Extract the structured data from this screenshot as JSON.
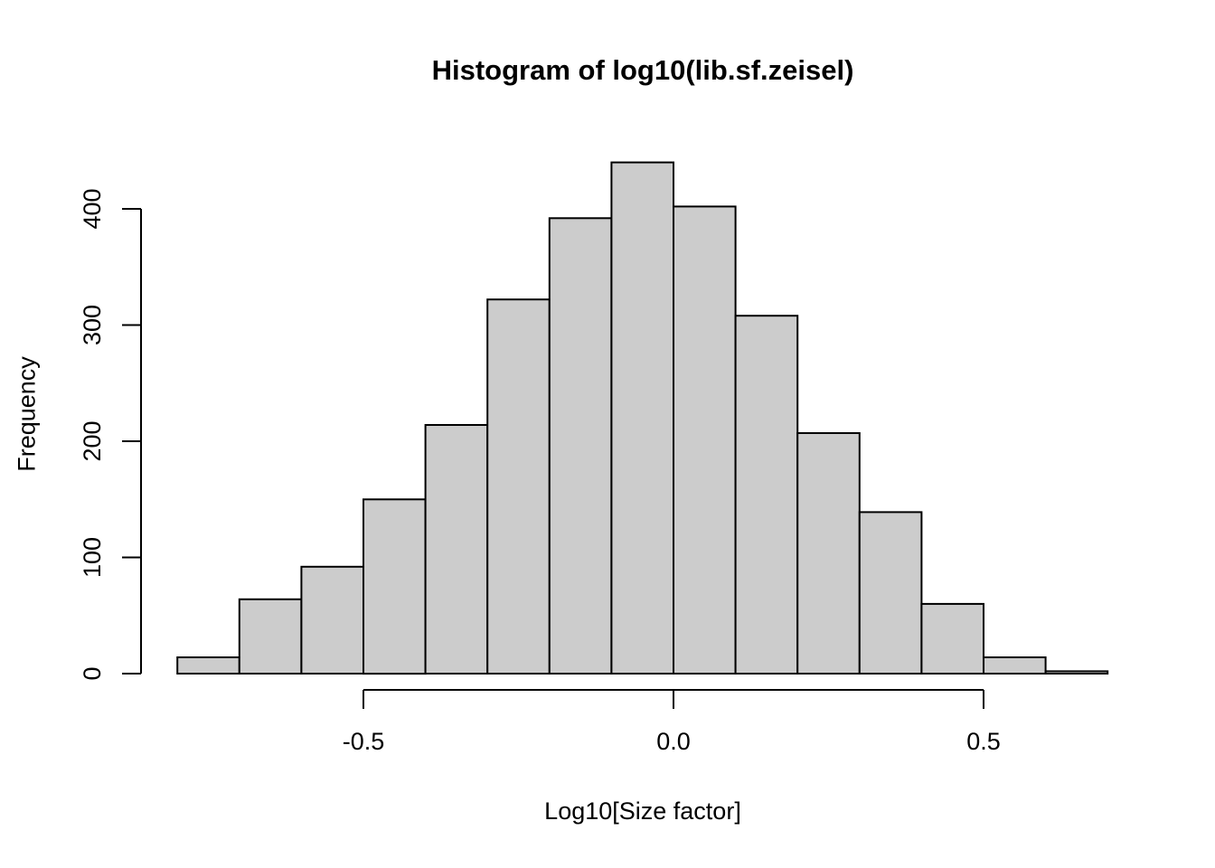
{
  "chart_data": {
    "type": "bar",
    "subtype": "histogram",
    "title": "Histogram of log10(lib.sf.zeisel)",
    "xlabel": "Log10[Size factor]",
    "ylabel": "Frequency",
    "bin_start": -0.8,
    "bin_width": 0.1,
    "categories": [
      "-0.8 to -0.7",
      "-0.7 to -0.6",
      "-0.6 to -0.5",
      "-0.5 to -0.4",
      "-0.4 to -0.3",
      "-0.3 to -0.2",
      "-0.2 to -0.1",
      "-0.1 to 0.0",
      "0.0 to 0.1",
      "0.1 to 0.2",
      "0.2 to 0.3",
      "0.3 to 0.4",
      "0.4 to 0.5",
      "0.5 to 0.6",
      "0.6 to 0.7"
    ],
    "values": [
      14,
      64,
      92,
      150,
      214,
      322,
      392,
      440,
      402,
      308,
      207,
      139,
      60,
      14,
      2
    ],
    "xlim": [
      -0.8,
      0.7
    ],
    "ylim": [
      0,
      440
    ],
    "x_ticks": [
      {
        "value": -0.5,
        "label": "-0.5"
      },
      {
        "value": 0.0,
        "label": "0.0"
      },
      {
        "value": 0.5,
        "label": "0.5"
      }
    ],
    "y_ticks": [
      {
        "value": 0,
        "label": "0"
      },
      {
        "value": 100,
        "label": "100"
      },
      {
        "value": 200,
        "label": "200"
      },
      {
        "value": 300,
        "label": "300"
      },
      {
        "value": 400,
        "label": "400"
      }
    ],
    "grid": false,
    "legend_position": "none",
    "colors": {
      "bar_fill": "#cccccc",
      "bar_stroke": "#000000",
      "axis": "#000000",
      "text": "#000000",
      "background": "#ffffff"
    }
  }
}
